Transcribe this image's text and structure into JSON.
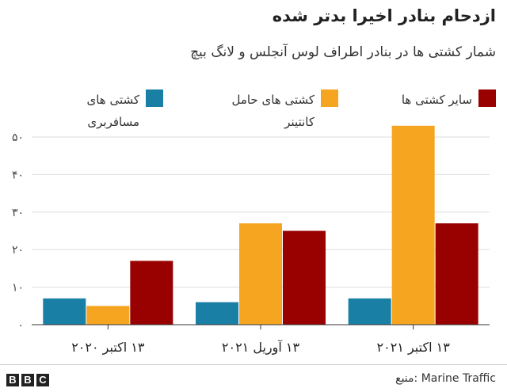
{
  "header": {
    "title": "ازدحام بنادر اخیرا بدتر شده",
    "subtitle": "شمار کشتی ها در بنادر اطراف لوس آنجلس و لانگ بیچ"
  },
  "chart_data": {
    "type": "bar",
    "title": "ازدحام بنادر اخیرا بدتر شده",
    "subtitle": "شمار کشتی ها در بنادر اطراف لوس آنجلس و لانگ بیچ",
    "categories": [
      "۱۳ اکتبر ۲۰۲۰",
      "۱۳ آوریل ۲۰۲۱",
      "۱۳ اکتبر ۲۰۲۱"
    ],
    "series": [
      {
        "name": "کشتی های مسافربری",
        "color": "#1a7fa5",
        "values": [
          7,
          6,
          7
        ]
      },
      {
        "name": "کشتی های حامل کانتینر",
        "color": "#f6a520",
        "values": [
          5,
          27,
          53
        ]
      },
      {
        "name": "سایر کشتی ها",
        "color": "#990000",
        "values": [
          17,
          25,
          27
        ]
      }
    ],
    "ylim": [
      0,
      50
    ],
    "yticks": [
      0,
      10,
      20,
      30,
      40,
      50
    ],
    "ytick_labels": [
      "۰",
      "۱۰",
      "۲۰",
      "۳۰",
      "۴۰",
      "۵۰"
    ],
    "grid": true,
    "legend_position": "top",
    "xlabel": "",
    "ylabel": ""
  },
  "legend": {
    "items": [
      {
        "label": "سایر کشتی ها",
        "color": "#990000"
      },
      {
        "label": "کشتی های حامل کانتینر",
        "color": "#f6a520"
      },
      {
        "label": "کشتی های مسافربری",
        "color": "#1a7fa5"
      }
    ]
  },
  "footer": {
    "source": "منبع: Marine Traffic",
    "logo_letters": [
      "B",
      "B",
      "C"
    ]
  }
}
